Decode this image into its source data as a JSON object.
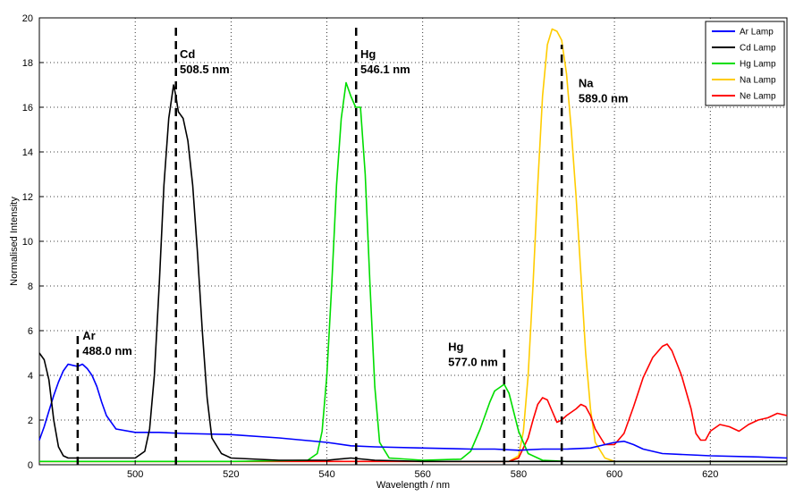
{
  "chart_data": {
    "type": "line",
    "title": "",
    "xlabel": "Wavelength / nm",
    "ylabel": "Normalised Intensity",
    "xlim": [
      480,
      636
    ],
    "ylim": [
      0,
      20
    ],
    "xticks": [
      500,
      520,
      540,
      560,
      580,
      600,
      620
    ],
    "yticks": [
      0,
      2,
      4,
      6,
      8,
      10,
      12,
      14,
      16,
      18,
      20
    ],
    "grid": "dotted",
    "legend_position": "top-right",
    "series": [
      {
        "name": "Ar Lamp",
        "color": "#0000ff",
        "x": [
          480,
          481,
          482,
          483,
          484,
          485,
          486,
          487,
          488,
          489,
          490,
          491,
          492,
          493,
          494,
          496,
          500,
          505,
          510,
          520,
          530,
          540,
          545,
          550,
          560,
          570,
          575,
          580,
          585,
          590,
          595,
          598,
          600,
          602,
          604,
          606,
          610,
          620,
          630,
          636
        ],
        "y": [
          1.1,
          1.7,
          2.4,
          3.1,
          3.7,
          4.2,
          4.5,
          4.45,
          4.4,
          4.5,
          4.3,
          4.0,
          3.5,
          2.8,
          2.2,
          1.6,
          1.45,
          1.45,
          1.4,
          1.35,
          1.2,
          1.0,
          0.85,
          0.8,
          0.75,
          0.7,
          0.7,
          0.65,
          0.7,
          0.7,
          0.75,
          0.9,
          1.0,
          1.05,
          0.9,
          0.7,
          0.5,
          0.4,
          0.35,
          0.3
        ]
      },
      {
        "name": "Cd Lamp",
        "color": "#000000",
        "x": [
          480,
          481,
          482,
          483,
          484,
          485,
          486,
          490,
          495,
          500,
          502,
          503,
          504,
          505,
          506,
          507,
          508,
          508.5,
          509,
          510,
          511,
          512,
          513,
          514,
          515,
          516,
          518,
          520,
          530,
          540,
          545,
          550,
          560,
          570,
          580,
          590,
          600,
          620,
          636
        ],
        "y": [
          5.0,
          4.7,
          3.8,
          2.0,
          0.8,
          0.4,
          0.3,
          0.3,
          0.3,
          0.3,
          0.6,
          1.6,
          4.0,
          8.0,
          12.5,
          15.5,
          17.0,
          16.5,
          15.8,
          15.5,
          14.5,
          12.5,
          9.5,
          6.0,
          3.0,
          1.2,
          0.5,
          0.3,
          0.2,
          0.2,
          0.3,
          0.2,
          0.15,
          0.15,
          0.15,
          0.15,
          0.15,
          0.15,
          0.15
        ]
      },
      {
        "name": "Hg Lamp",
        "color": "#00dd00",
        "x": [
          480,
          520,
          536,
          538,
          539,
          540,
          541,
          542,
          543,
          544,
          545,
          546,
          547,
          548,
          549,
          550,
          551,
          553,
          560,
          568,
          570,
          572,
          574,
          575,
          577,
          578,
          580,
          582,
          585,
          590,
          600,
          620,
          636
        ],
        "y": [
          0.15,
          0.15,
          0.2,
          0.5,
          1.5,
          4.0,
          8.0,
          12.5,
          15.5,
          17.1,
          16.5,
          16.0,
          16.0,
          13.0,
          8.0,
          3.5,
          1.0,
          0.3,
          0.2,
          0.25,
          0.6,
          1.6,
          2.8,
          3.3,
          3.6,
          3.2,
          1.5,
          0.5,
          0.2,
          0.15,
          0.15,
          0.15,
          0.15
        ]
      },
      {
        "name": "Na Lamp",
        "color": "#ffcc00",
        "x": [
          480,
          560,
          578,
          580,
          581,
          582,
          583,
          584,
          585,
          586,
          587,
          588,
          589,
          590,
          591,
          592,
          593,
          594,
          595,
          596,
          598,
          600,
          620,
          636
        ],
        "y": [
          0.15,
          0.15,
          0.15,
          0.4,
          1.5,
          4.0,
          8.0,
          12.5,
          16.5,
          18.8,
          19.5,
          19.4,
          19.0,
          17.5,
          15.0,
          12.0,
          8.5,
          5.0,
          2.5,
          1.0,
          0.3,
          0.15,
          0.15,
          0.15
        ]
      },
      {
        "name": "Ne Lamp",
        "color": "#ff0000",
        "x": [
          480,
          560,
          578,
          580,
          582,
          583,
          584,
          585,
          586,
          587,
          588,
          589,
          590,
          592,
          593,
          594,
          595,
          596,
          598,
          600,
          602,
          604,
          606,
          608,
          610,
          611,
          612,
          614,
          616,
          617,
          618,
          619,
          620,
          622,
          624,
          626,
          628,
          630,
          632,
          634,
          636
        ],
        "y": [
          0.15,
          0.15,
          0.15,
          0.3,
          1.2,
          2.0,
          2.7,
          3.0,
          2.9,
          2.4,
          1.9,
          2.0,
          2.2,
          2.5,
          2.7,
          2.6,
          2.2,
          1.6,
          0.9,
          0.9,
          1.4,
          2.6,
          3.9,
          4.8,
          5.3,
          5.4,
          5.1,
          4.0,
          2.5,
          1.4,
          1.1,
          1.1,
          1.5,
          1.8,
          1.7,
          1.5,
          1.8,
          2.0,
          2.1,
          2.3,
          2.2
        ]
      }
    ],
    "reference_lines": [
      {
        "x": 488.0,
        "y_range": [
          0,
          6.0
        ]
      },
      {
        "x": 508.5,
        "y_range": [
          0,
          19.6
        ]
      },
      {
        "x": 546.1,
        "y_range": [
          0,
          19.6
        ]
      },
      {
        "x": 577.0,
        "y_range": [
          0,
          5.4
        ]
      },
      {
        "x": 589.0,
        "y_range": [
          0,
          18.8
        ]
      }
    ],
    "annotations": [
      {
        "lines": [
          "Ar",
          "488.0 nm"
        ],
        "x": 489.0,
        "y": 5.6
      },
      {
        "lines": [
          "Cd",
          "508.5 nm"
        ],
        "x": 509.3,
        "y": 18.2
      },
      {
        "lines": [
          "Hg",
          "546.1 nm"
        ],
        "x": 547.0,
        "y": 18.2
      },
      {
        "lines": [
          "Hg",
          "577.0 nm"
        ],
        "x": 565.3,
        "y": 5.1
      },
      {
        "lines": [
          "Na",
          "589.0 nm"
        ],
        "x": 592.5,
        "y": 16.9
      }
    ]
  }
}
